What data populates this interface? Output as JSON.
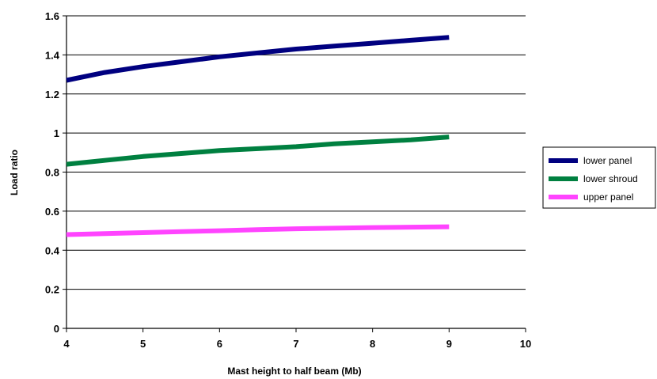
{
  "chart_data": {
    "type": "line",
    "title": "",
    "xlabel": "Mast height to half beam (Mb)",
    "ylabel": "Load ratio",
    "xlim": [
      4,
      10
    ],
    "ylim": [
      0,
      1.6
    ],
    "x_ticks": [
      "4",
      "5",
      "6",
      "7",
      "8",
      "9",
      "10"
    ],
    "y_ticks": [
      "0",
      "0.2",
      "0.4",
      "0.6",
      "0.8",
      "1",
      "1.2",
      "1.4",
      "1.6"
    ],
    "grid": "horizontal",
    "legend_position": "right",
    "series": [
      {
        "name": "lower panel",
        "color": "#000080",
        "x": [
          4,
          4.5,
          5,
          5.5,
          6,
          6.5,
          7,
          7.5,
          8,
          8.5,
          9
        ],
        "y": [
          1.27,
          1.31,
          1.34,
          1.365,
          1.39,
          1.41,
          1.43,
          1.445,
          1.46,
          1.475,
          1.49
        ]
      },
      {
        "name": "lower shroud",
        "color": "#008040",
        "x": [
          4,
          4.5,
          5,
          5.5,
          6,
          6.5,
          7,
          7.5,
          8,
          8.5,
          9
        ],
        "y": [
          0.84,
          0.86,
          0.88,
          0.895,
          0.91,
          0.92,
          0.93,
          0.945,
          0.955,
          0.965,
          0.98
        ]
      },
      {
        "name": "upper panel",
        "color": "#ff44ff",
        "x": [
          4,
          4.5,
          5,
          5.5,
          6,
          6.5,
          7,
          7.5,
          8,
          8.5,
          9
        ],
        "y": [
          0.48,
          0.485,
          0.49,
          0.495,
          0.5,
          0.505,
          0.51,
          0.513,
          0.516,
          0.518,
          0.52
        ]
      }
    ]
  }
}
